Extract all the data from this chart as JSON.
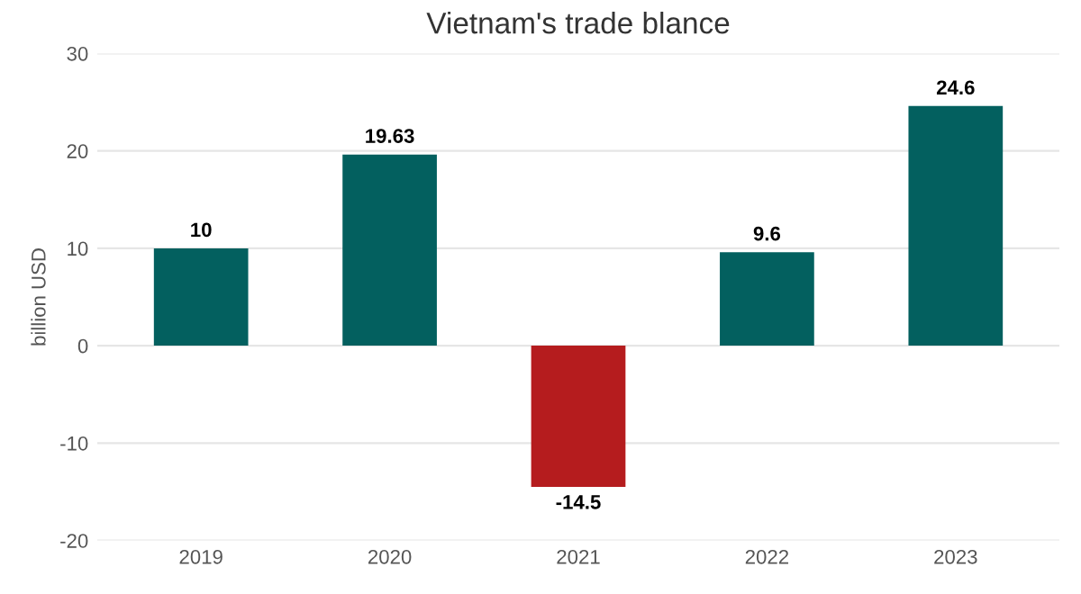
{
  "chart_data": {
    "type": "bar",
    "title": "Vietnam's trade blance",
    "ylabel": "billion USD",
    "categories": [
      "2019",
      "2020",
      "2021",
      "2022",
      "2023"
    ],
    "values": [
      10,
      19.63,
      -14.5,
      9.6,
      24.6
    ],
    "colors": [
      "#03605f",
      "#03605f",
      "#b51c1e",
      "#03605f",
      "#03605f"
    ],
    "ylim": [
      -20,
      30
    ],
    "yticks": [
      -20,
      -10,
      0,
      10,
      20,
      30
    ],
    "grid": "y",
    "data_labels": true
  }
}
